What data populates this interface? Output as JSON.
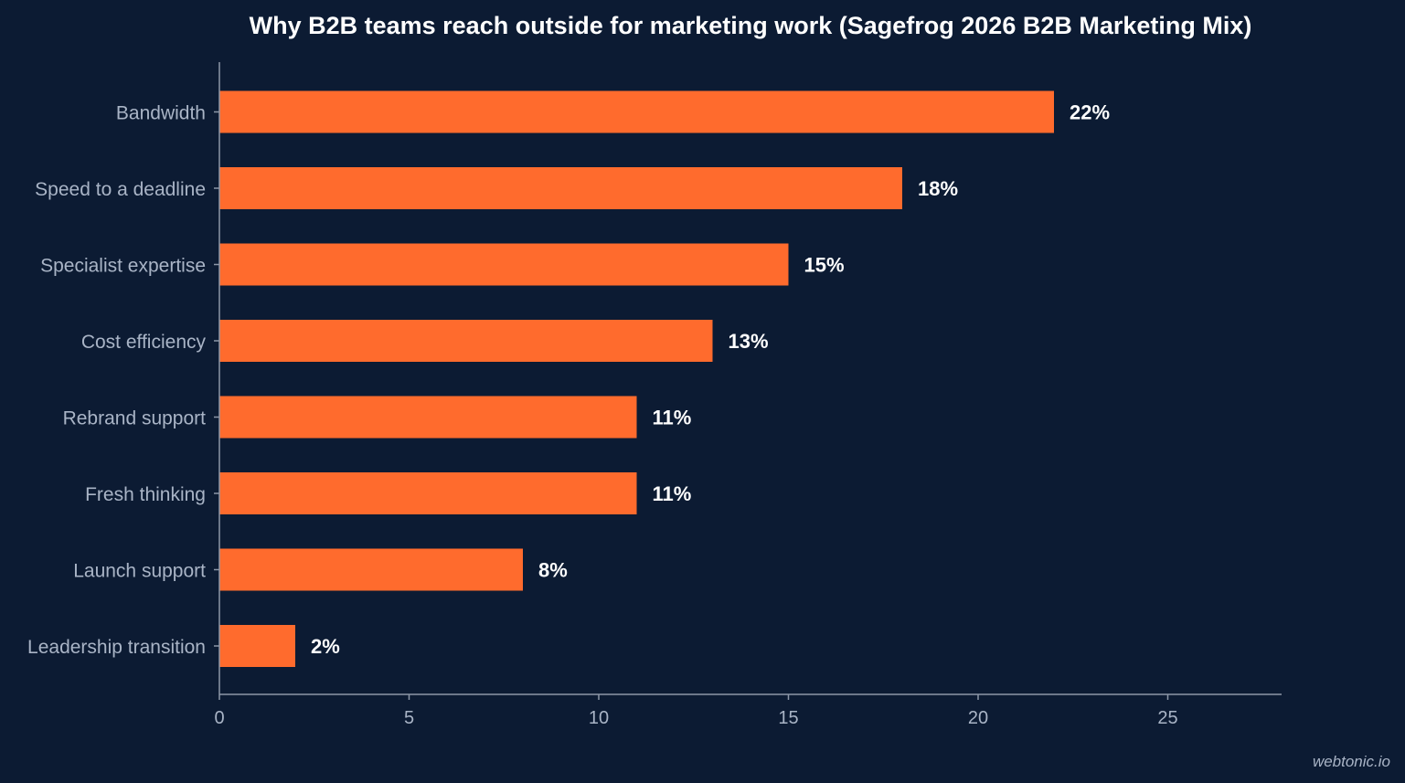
{
  "chart_data": {
    "type": "bar",
    "orientation": "horizontal",
    "title": "Why B2B teams reach outside for marketing work (Sagefrog 2026 B2B Marketing Mix)",
    "categories": [
      "Bandwidth",
      "Speed to a deadline",
      "Specialist expertise",
      "Cost efficiency",
      "Rebrand support",
      "Fresh thinking",
      "Launch support",
      "Leadership transition"
    ],
    "values": [
      22,
      18,
      15,
      13,
      11,
      11,
      8,
      2
    ],
    "value_labels": [
      "22%",
      "18%",
      "15%",
      "13%",
      "11%",
      "11%",
      "8%",
      "2%"
    ],
    "xlim": [
      0,
      28
    ],
    "xticks": [
      0,
      5,
      10,
      15,
      20,
      25
    ],
    "xlabel": "",
    "ylabel": "",
    "grid": false,
    "colors": {
      "bar": "#ff6b2d",
      "background": "#0c1b33",
      "text": "#ffffff",
      "muted": "#a9b4c6"
    }
  },
  "watermark": "webtonic.io"
}
